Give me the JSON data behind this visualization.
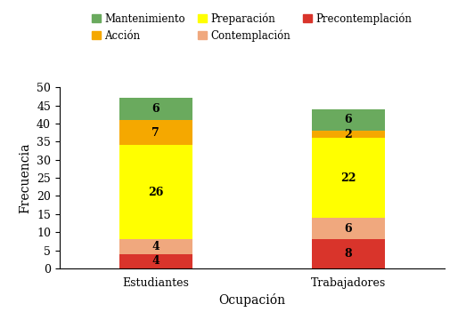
{
  "categories": [
    "Estudiantes",
    "Trabajadores"
  ],
  "segments": [
    {
      "label": "Precontemplación",
      "color": "#d9342b",
      "values": [
        4,
        8
      ]
    },
    {
      "label": "Contemplación",
      "color": "#f0a87e",
      "values": [
        4,
        6
      ]
    },
    {
      "label": "Preparación",
      "color": "#ffff00",
      "values": [
        26,
        22
      ]
    },
    {
      "label": "Acción",
      "color": "#f5a800",
      "values": [
        7,
        2
      ]
    },
    {
      "label": "Mantenimiento",
      "color": "#6aaa5e",
      "values": [
        6,
        6
      ]
    }
  ],
  "xlabel": "Ocupación",
  "ylabel": "Frecuencia",
  "ylim": [
    0,
    50
  ],
  "yticks": [
    0,
    5,
    10,
    15,
    20,
    25,
    30,
    35,
    40,
    45,
    50
  ],
  "bar_width": 0.38,
  "legend_order": [
    "Mantenimiento",
    "Acción",
    "Preparación",
    "Contemplación",
    "Precontemplación"
  ],
  "label_fontsize": 9,
  "axis_fontsize": 10,
  "legend_fontsize": 8.5,
  "value_fontsize": 9,
  "background_color": "#ffffff"
}
